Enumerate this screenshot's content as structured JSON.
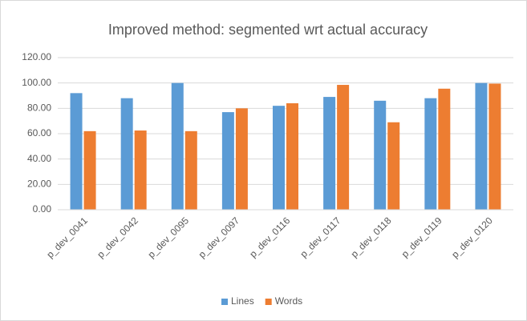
{
  "chart_data": {
    "type": "bar",
    "title": "Improved method: segmented wrt actual accuracy",
    "categories": [
      "p_dev_0041",
      "p_dev_0042",
      "p_dev_0095",
      "p_dev_0097",
      "p_dev_0116",
      "p_dev_0117",
      "p_dev_0118",
      "p_dev_0119",
      "p_dev_0120"
    ],
    "series": [
      {
        "name": "Lines",
        "color": "#5b9bd5",
        "values": [
          92,
          88,
          100,
          77,
          82,
          89,
          86,
          88,
          100
        ]
      },
      {
        "name": "Words",
        "color": "#ed7d31",
        "values": [
          62,
          62.5,
          62,
          80,
          84,
          98.5,
          69,
          95.5,
          99.5
        ]
      }
    ],
    "ylim": [
      0,
      120
    ],
    "yticks": [
      {
        "value": 0,
        "label": "0.00"
      },
      {
        "value": 20,
        "label": "20.00"
      },
      {
        "value": 40,
        "label": "40.00"
      },
      {
        "value": 60,
        "label": "60.00"
      },
      {
        "value": 80,
        "label": "80.00"
      },
      {
        "value": 100,
        "label": "100.00"
      },
      {
        "value": 120,
        "label": "120.00"
      }
    ],
    "grid": true,
    "legend": "bottom"
  }
}
